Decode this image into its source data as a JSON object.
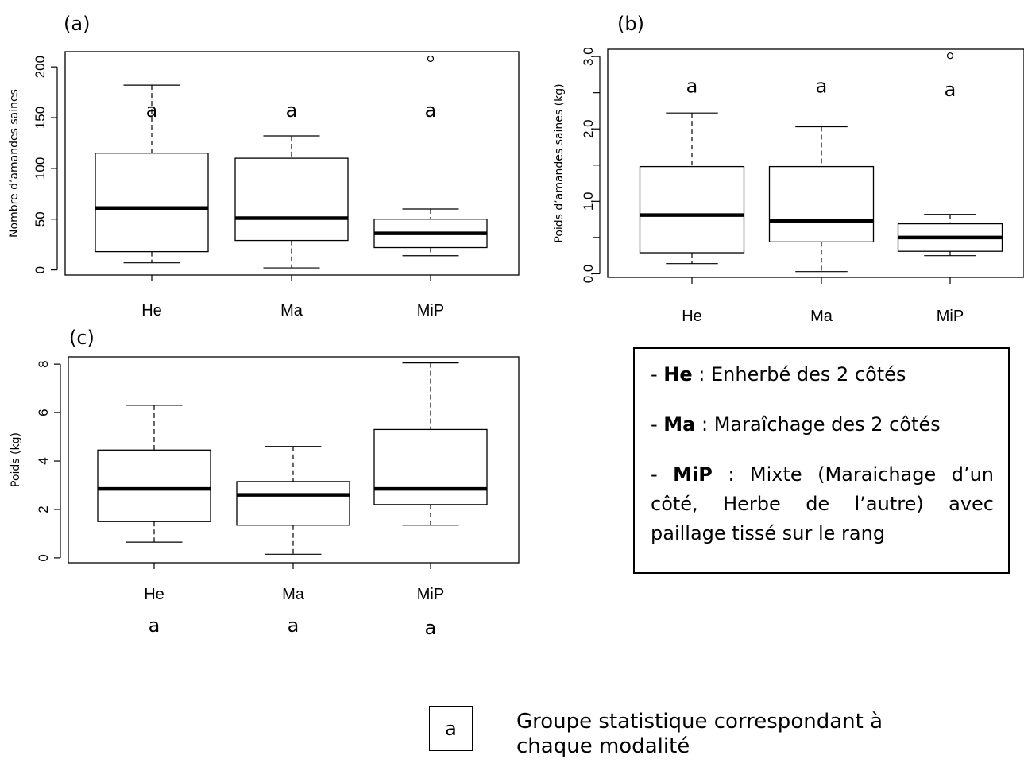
{
  "chart_data": [
    {
      "type": "box",
      "panel_label": "(a)",
      "ylabel": "Nombre d’amandes saines",
      "categories": [
        "He",
        "Ma",
        "MiP"
      ],
      "yticks": [
        0,
        50,
        100,
        150,
        200
      ],
      "ylim": [
        -5,
        215
      ],
      "boxes": [
        {
          "name": "He",
          "min": 7,
          "q1": 18,
          "median": 61,
          "q3": 115,
          "max": 182,
          "outliers": []
        },
        {
          "name": "Ma",
          "min": 2,
          "q1": 29,
          "median": 51,
          "q3": 110,
          "max": 132,
          "outliers": []
        },
        {
          "name": "MiP",
          "min": 14,
          "q1": 22,
          "median": 36,
          "q3": 50,
          "max": 60,
          "outliers": [
            208
          ]
        }
      ],
      "groups": [
        {
          "name": "He",
          "letter": "a",
          "y": 158
        },
        {
          "name": "Ma",
          "letter": "a",
          "y": 158
        },
        {
          "name": "MiP",
          "letter": "a",
          "y": 158
        }
      ]
    },
    {
      "type": "box",
      "panel_label": "(b)",
      "ylabel": "Poids d’amandes saines (kg)",
      "categories": [
        "He",
        "Ma",
        "MiP"
      ],
      "yticks": [
        0.0,
        0.5,
        1.0,
        1.5,
        2.0,
        2.5,
        3.0
      ],
      "ytick_labels": [
        "0.0",
        "",
        "1.0",
        "",
        "2.0",
        "",
        "3.0"
      ],
      "ylim": [
        -0.05,
        3.1
      ],
      "boxes": [
        {
          "name": "He",
          "min": 0.14,
          "q1": 0.29,
          "median": 0.81,
          "q3": 1.48,
          "max": 2.22,
          "outliers": []
        },
        {
          "name": "Ma",
          "min": 0.03,
          "q1": 0.44,
          "median": 0.73,
          "q3": 1.48,
          "max": 2.03,
          "outliers": []
        },
        {
          "name": "MiP",
          "min": 0.25,
          "q1": 0.31,
          "median": 0.5,
          "q3": 0.69,
          "max": 0.82,
          "outliers": [
            3.01
          ]
        }
      ],
      "groups": [
        {
          "name": "He",
          "letter": "a",
          "y": 2.6
        },
        {
          "name": "Ma",
          "letter": "a",
          "y": 2.6
        },
        {
          "name": "MiP",
          "letter": "a",
          "y": 2.55
        }
      ]
    },
    {
      "type": "box",
      "panel_label": "(c)",
      "ylabel": "Poids (kg)",
      "categories": [
        "He",
        "Ma",
        "MiP"
      ],
      "yticks": [
        0,
        2,
        4,
        6,
        8
      ],
      "ylim": [
        -0.2,
        8.3
      ],
      "boxes": [
        {
          "name": "He",
          "min": 0.65,
          "q1": 1.5,
          "median": 2.85,
          "q3": 4.45,
          "max": 6.3,
          "outliers": []
        },
        {
          "name": "Ma",
          "min": 0.15,
          "q1": 1.35,
          "median": 2.6,
          "q3": 3.15,
          "max": 4.6,
          "outliers": []
        },
        {
          "name": "MiP",
          "min": 1.35,
          "q1": 2.2,
          "median": 2.85,
          "q3": 5.3,
          "max": 8.05,
          "outliers": []
        }
      ],
      "group_letters_below": [
        "a",
        "a",
        "a"
      ]
    }
  ],
  "legend": {
    "line1_code": "He",
    "line1_text": " : Enherbé des 2 côtés",
    "line2_code": "Ma",
    "line2_text": " : Maraîchage des 2 côtés",
    "line3_code": "MiP",
    "line3_text_a": " :  Mixte  (Maraichage  d’un",
    "line3_text_b": "côté,  Herbe  de  l’autre)  avec",
    "line3_text_c": "paillage tissé sur le rang",
    "dash": "- "
  },
  "key": {
    "letter": "a",
    "text": "Groupe statistique correspondant à chaque modalité"
  }
}
